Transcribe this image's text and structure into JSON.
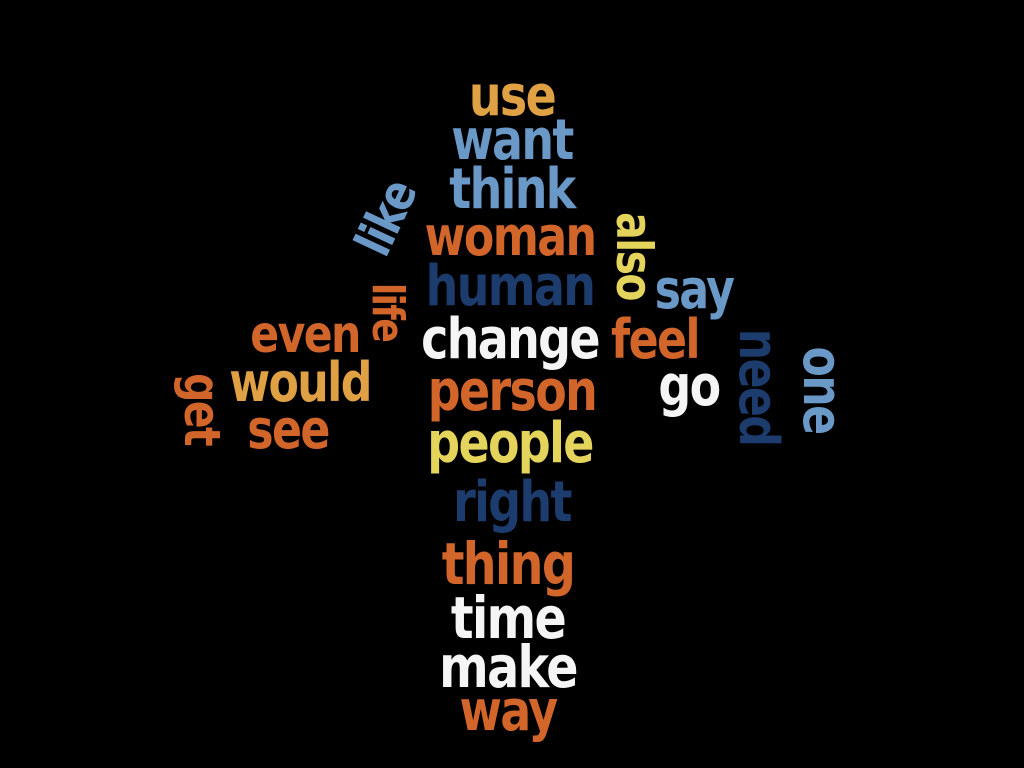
{
  "colors": {
    "background": "#000000",
    "orange": "#D2652A",
    "light_orange": "#E0A145",
    "yellow": "#E4D45C",
    "light_blue": "#6A98C7",
    "dark_blue": "#1D3C6E",
    "white": "#F5F5F5"
  },
  "words": [
    {
      "id": "use",
      "text": "use",
      "color": "#E0A145"
    },
    {
      "id": "want",
      "text": "want",
      "color": "#6A98C7"
    },
    {
      "id": "think",
      "text": "think",
      "color": "#6A98C7"
    },
    {
      "id": "like",
      "text": "like",
      "color": "#6A98C7"
    },
    {
      "id": "woman",
      "text": "woman",
      "color": "#D2652A"
    },
    {
      "id": "also",
      "text": "also",
      "color": "#E4D45C"
    },
    {
      "id": "human",
      "text": "human",
      "color": "#1D3C6E"
    },
    {
      "id": "say",
      "text": "say",
      "color": "#6A98C7"
    },
    {
      "id": "life",
      "text": "life",
      "color": "#D2652A"
    },
    {
      "id": "even",
      "text": "even",
      "color": "#D2652A"
    },
    {
      "id": "change",
      "text": "change",
      "color": "#F5F5F5"
    },
    {
      "id": "feel",
      "text": "feel",
      "color": "#D2652A"
    },
    {
      "id": "need",
      "text": "need",
      "color": "#1D3C6E"
    },
    {
      "id": "one",
      "text": "one",
      "color": "#6A98C7"
    },
    {
      "id": "get",
      "text": "get",
      "color": "#D2652A"
    },
    {
      "id": "would",
      "text": "would",
      "color": "#E0A145"
    },
    {
      "id": "person",
      "text": "person",
      "color": "#D2652A"
    },
    {
      "id": "go",
      "text": "go",
      "color": "#F5F5F5"
    },
    {
      "id": "see",
      "text": "see",
      "color": "#D2652A"
    },
    {
      "id": "people",
      "text": "people",
      "color": "#E4D45C"
    },
    {
      "id": "right",
      "text": "right",
      "color": "#1D3C6E"
    },
    {
      "id": "thing",
      "text": "thing",
      "color": "#D2652A"
    },
    {
      "id": "time",
      "text": "time",
      "color": "#F5F5F5"
    },
    {
      "id": "make",
      "text": "make",
      "color": "#F5F5F5"
    },
    {
      "id": "way",
      "text": "way",
      "color": "#D2652A"
    }
  ]
}
